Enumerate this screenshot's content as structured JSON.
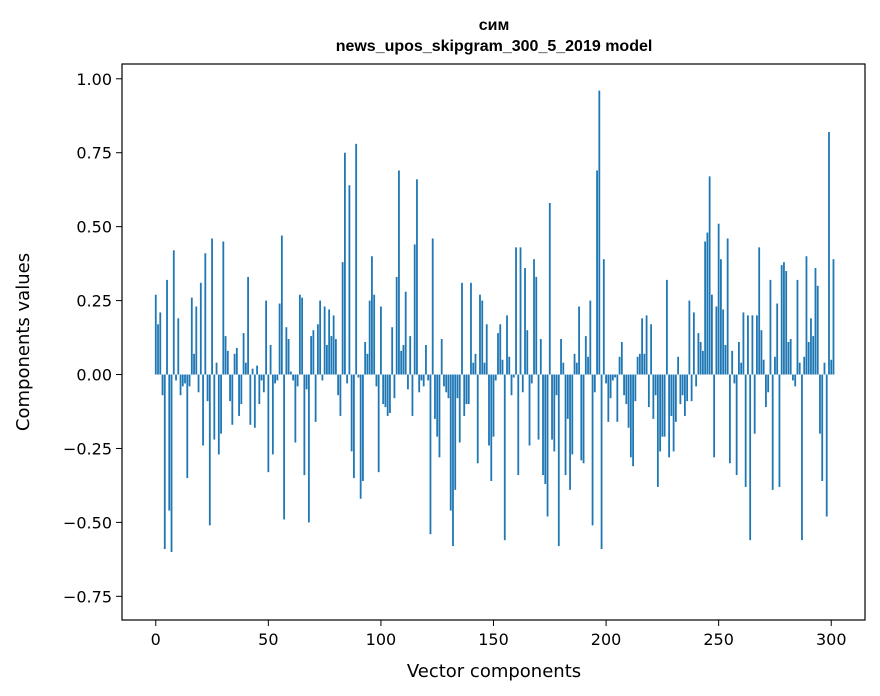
{
  "chart_data": {
    "type": "bar",
    "title_line1": "сим",
    "title_line2": "news_upos_skipgram_300_5_2019 model",
    "xlabel": "Vector components",
    "ylabel": "Components values",
    "xlim": [
      -15,
      315
    ],
    "ylim": [
      -0.83,
      1.05
    ],
    "xticks": [
      0,
      50,
      100,
      150,
      200,
      250,
      300
    ],
    "yticks": [
      -0.75,
      -0.5,
      -0.25,
      0.0,
      0.25,
      0.5,
      0.75,
      1.0
    ],
    "ytick_labels": [
      "−0.75",
      "−0.50",
      "−0.25",
      "0.00",
      "0.25",
      "0.50",
      "0.75",
      "1.00"
    ],
    "bar_color": "#1f77b4",
    "grid": false,
    "values": [
      0.27,
      0.17,
      0.21,
      -0.07,
      -0.59,
      0.32,
      -0.46,
      -0.6,
      0.42,
      -0.02,
      0.19,
      -0.07,
      -0.04,
      -0.03,
      -0.35,
      -0.04,
      0.26,
      0.07,
      0.23,
      -0.06,
      0.31,
      -0.24,
      0.41,
      -0.09,
      -0.51,
      0.46,
      -0.22,
      0.04,
      -0.27,
      -0.2,
      0.45,
      0.13,
      0.08,
      -0.09,
      -0.17,
      0.07,
      0.09,
      -0.14,
      -0.1,
      0.14,
      0.04,
      0.33,
      -0.17,
      0.02,
      -0.18,
      0.03,
      -0.1,
      -0.02,
      -0.06,
      0.25,
      -0.33,
      0.1,
      -0.27,
      -0.03,
      -0.02,
      0.24,
      0.47,
      -0.49,
      0.16,
      0.12,
      0.01,
      -0.02,
      -0.23,
      -0.04,
      0.27,
      0.26,
      -0.34,
      -0.05,
      -0.5,
      0.13,
      0.15,
      -0.16,
      0.17,
      0.25,
      -0.02,
      0.23,
      0.1,
      0.22,
      0.13,
      0.2,
      0.12,
      -0.07,
      -0.14,
      0.38,
      0.75,
      -0.03,
      0.64,
      -0.26,
      -0.35,
      0.78,
      -0.01,
      -0.42,
      -0.36,
      0.11,
      0.07,
      0.25,
      0.4,
      0.27,
      -0.04,
      -0.33,
      0.23,
      -0.1,
      -0.11,
      -0.14,
      -0.13,
      0.16,
      -0.08,
      0.33,
      0.69,
      0.08,
      0.1,
      0.28,
      -0.05,
      0.13,
      -0.14,
      0.44,
      0.66,
      -0.06,
      -0.02,
      -0.04,
      0.1,
      -0.02,
      -0.54,
      0.46,
      -0.15,
      -0.21,
      -0.28,
      0.12,
      -0.04,
      -0.06,
      -0.08,
      -0.46,
      -0.58,
      -0.39,
      -0.08,
      -0.23,
      0.31,
      -0.14,
      -0.1,
      -0.1,
      0.31,
      0.04,
      0.07,
      -0.3,
      0.27,
      0.25,
      0.04,
      0.17,
      -0.24,
      -0.36,
      -0.21,
      -0.02,
      0.14,
      0.17,
      0.05,
      -0.56,
      0.2,
      0.06,
      -0.07,
      -0.01,
      0.43,
      -0.34,
      0.43,
      -0.06,
      0.36,
      0.15,
      -0.24,
      -0.03,
      0.39,
      0.33,
      -0.22,
      0.12,
      -0.34,
      -0.37,
      -0.48,
      0.58,
      -0.22,
      -0.26,
      -0.07,
      -0.58,
      0.12,
      0.04,
      -0.34,
      -0.15,
      -0.39,
      -0.27,
      0.07,
      0.04,
      0.23,
      -0.29,
      -0.3,
      0.13,
      0.06,
      0.25,
      -0.51,
      -0.06,
      0.69,
      0.96,
      -0.59,
      0.39,
      -0.03,
      -0.16,
      -0.08,
      -0.02,
      -0.01,
      -0.16,
      0.06,
      0.11,
      -0.07,
      -0.1,
      -0.18,
      -0.28,
      -0.31,
      -0.09,
      0.06,
      0.07,
      0.19,
      0.07,
      0.2,
      -0.11,
      0.17,
      -0.15,
      -0.07,
      -0.38,
      -0.26,
      -0.21,
      -0.21,
      0.32,
      -0.28,
      -0.14,
      -0.26,
      -0.16,
      0.06,
      -0.1,
      -0.07,
      -0.14,
      -0.09,
      0.25,
      -0.09,
      0.21,
      -0.04,
      0.14,
      0.11,
      0.08,
      0.45,
      0.48,
      0.67,
      0.27,
      -0.28,
      0.23,
      0.51,
      0.39,
      0.22,
      0.1,
      0.46,
      -0.3,
      0.08,
      -0.03,
      -0.34,
      0.11,
      0.04,
      0.21,
      -0.38,
      0.2,
      -0.56,
      0.2,
      -0.2,
      0.2,
      0.43,
      0.15,
      0.05,
      -0.11,
      -0.06,
      0.32,
      -0.39,
      0.06,
      0.24,
      -0.38,
      0.37,
      0.38,
      0.35,
      0.11,
      0.12,
      -0.02,
      -0.04,
      0.32,
      0.04,
      -0.56,
      0.06,
      0.4,
      0.11,
      0.19,
      0.13,
      0.36,
      0.3,
      -0.2,
      -0.36,
      0.04,
      -0.48,
      0.82,
      0.05,
      0.39,
      0.0,
      0.0
    ]
  }
}
